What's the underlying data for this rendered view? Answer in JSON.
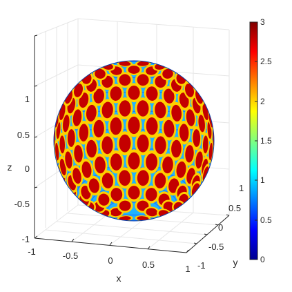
{
  "chart_data": {
    "type": "surface",
    "xlabel": "x",
    "ylabel": "y",
    "zlabel": "z",
    "xlim": [
      -1,
      1
    ],
    "ylim": [
      -1,
      1
    ],
    "zlim": [
      -1,
      1
    ],
    "x_ticks": [
      "-1",
      "-0.5",
      "0",
      "0.5",
      "1"
    ],
    "y_ticks": [
      "-1",
      "-0.5",
      "0",
      "0.5",
      "1"
    ],
    "z_ticks": [
      "-1",
      "-0.5",
      "0",
      "0.5",
      "1"
    ],
    "colorbar": {
      "colormap": "jet",
      "range": [
        0,
        3
      ],
      "ticks": [
        "0",
        "0.5",
        "1",
        "1.5",
        "2",
        "2.5",
        "3"
      ]
    },
    "surface": "unit sphere colored by a periodic scalar field",
    "grid": true,
    "view": "3-D perspective"
  },
  "colors": {
    "jet": [
      "#00008f",
      "#0000ff",
      "#00ffff",
      "#ffff00",
      "#ff0000",
      "#800000"
    ],
    "grid": "#e6e6e6",
    "axis": "#262626"
  }
}
